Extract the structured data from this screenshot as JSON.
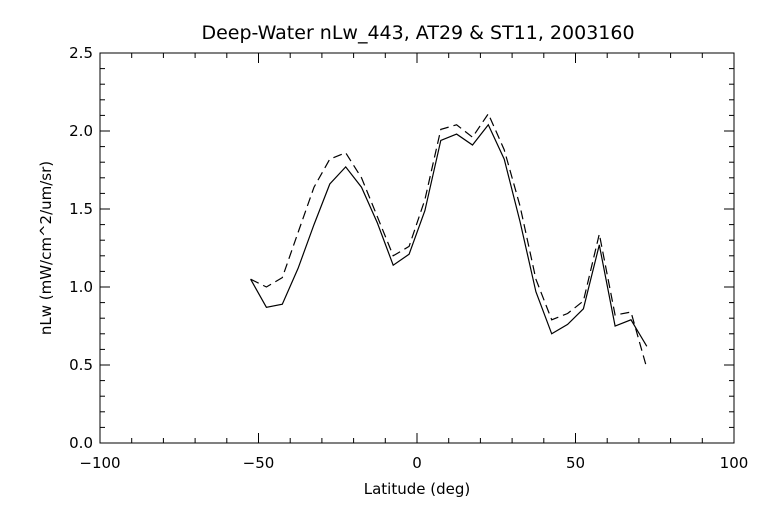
{
  "chart_data": {
    "type": "line",
    "title": "Deep-Water nLw_443, AT29 & ST11, 2003160",
    "xlabel": "Latitude (deg)",
    "ylabel": "nLw (mW/cm^2/um/sr)",
    "xlim": [
      -100,
      100
    ],
    "ylim": [
      0.0,
      2.5
    ],
    "x_ticks": [
      -100,
      -50,
      0,
      50,
      100
    ],
    "x_tick_labels": [
      "−100",
      "−50",
      "0",
      "50",
      "100"
    ],
    "y_ticks": [
      0.0,
      0.5,
      1.0,
      1.5,
      2.0,
      2.5
    ],
    "y_tick_labels": [
      "0.0",
      "0.5",
      "1.0",
      "1.5",
      "2.0",
      "2.5"
    ],
    "grid": false,
    "legend": "none",
    "series": [
      {
        "style": "solid",
        "color": "#000000",
        "x": [
          -52.5,
          -47.5,
          -42.5,
          -37.5,
          -32.5,
          -27.5,
          -22.5,
          -17.5,
          -12.5,
          -7.5,
          -2.5,
          2.5,
          7.5,
          12.5,
          17.5,
          22.5,
          27.5,
          32.5,
          37.5,
          42.5,
          47.5,
          52.5,
          57.5,
          62.5,
          67.5,
          72.5
        ],
        "y": [
          1.05,
          0.87,
          0.89,
          1.12,
          1.4,
          1.66,
          1.77,
          1.64,
          1.41,
          1.14,
          1.21,
          1.49,
          1.94,
          1.98,
          1.91,
          2.04,
          1.82,
          1.42,
          0.97,
          0.7,
          0.76,
          0.86,
          1.27,
          0.75,
          0.79,
          0.62
        ]
      },
      {
        "style": "dashed",
        "color": "#000000",
        "x": [
          -52.5,
          -47.5,
          -42.5,
          -37.5,
          -32.5,
          -27.5,
          -22.5,
          -17.5,
          -12.5,
          -7.5,
          -2.5,
          2.5,
          7.5,
          12.5,
          17.5,
          22.5,
          27.5,
          32.5,
          37.5,
          42.5,
          47.5,
          52.5,
          57.5,
          62.5,
          67.5,
          72.5
        ],
        "y": [
          1.05,
          1.0,
          1.06,
          1.35,
          1.64,
          1.82,
          1.86,
          1.7,
          1.45,
          1.2,
          1.26,
          1.56,
          2.01,
          2.04,
          1.96,
          2.11,
          1.88,
          1.52,
          1.05,
          0.79,
          0.83,
          0.91,
          1.34,
          0.82,
          0.84,
          0.48
        ]
      }
    ]
  }
}
